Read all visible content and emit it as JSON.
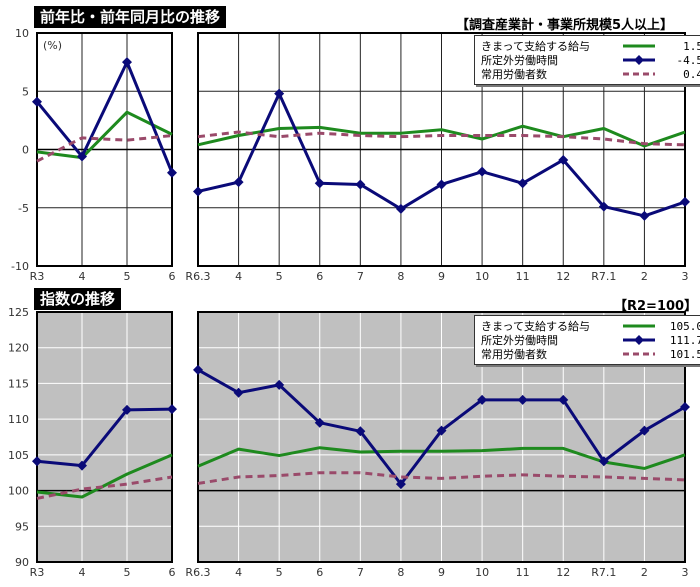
{
  "top": {
    "title": "前年比・前年同月比の推移",
    "note": "【調査産業計・事業所規模5人以上】",
    "unit": "(%)"
  },
  "bottom": {
    "title": "指数の推移",
    "note": "【R2=100】"
  },
  "legend_top": [
    {
      "label": "きまって支給する給与",
      "value": "1.5"
    },
    {
      "label": "所定外労働時間",
      "value": "-4.5"
    },
    {
      "label": "常用労働者数",
      "value": "0.4"
    }
  ],
  "legend_bottom": [
    {
      "label": "きまって支給する給与",
      "value": "105.0"
    },
    {
      "label": "所定外労働時間",
      "value": "111.7"
    },
    {
      "label": "常用労働者数",
      "value": "101.5"
    }
  ],
  "colors": {
    "wage": "#1e8a1e",
    "overtime": "#0a0a78",
    "employees": "#9a4a6a"
  },
  "chart_data": [
    {
      "type": "line",
      "title": "前年比・前年同月比の推移 (年)",
      "ylabel": "(%)",
      "categories": [
        "R3",
        "4",
        "5",
        "6"
      ],
      "ylim": [
        -10,
        10
      ],
      "yticks": [
        -10,
        -5,
        0,
        5,
        10
      ],
      "series": [
        {
          "name": "きまって支給する給与",
          "values": [
            -0.2,
            -0.7,
            3.2,
            1.3
          ]
        },
        {
          "name": "所定外労働時間",
          "values": [
            4.1,
            -0.6,
            7.5,
            -2.0
          ]
        },
        {
          "name": "常用労働者数",
          "values": [
            -1.0,
            1.0,
            0.8,
            1.2
          ]
        }
      ]
    },
    {
      "type": "line",
      "title": "前年比・前年同月比の推移 (月)",
      "categories": [
        "R6.3",
        "4",
        "5",
        "6",
        "7",
        "8",
        "9",
        "10",
        "11",
        "12",
        "R7.1",
        "2",
        "3"
      ],
      "ylim": [
        -10,
        10
      ],
      "series": [
        {
          "name": "きまって支給する給与",
          "values": [
            0.4,
            1.2,
            1.8,
            1.9,
            1.4,
            1.4,
            1.7,
            0.9,
            2.0,
            1.1,
            1.8,
            0.3,
            1.5
          ]
        },
        {
          "name": "所定外労働時間",
          "values": [
            -3.6,
            -2.8,
            4.8,
            -2.9,
            -3.0,
            -5.1,
            -3.0,
            -1.9,
            -2.9,
            -0.9,
            -4.9,
            -5.7,
            -4.5
          ]
        },
        {
          "name": "常用労働者数",
          "values": [
            1.1,
            1.5,
            1.1,
            1.4,
            1.2,
            1.1,
            1.2,
            1.2,
            1.2,
            1.1,
            0.9,
            0.5,
            0.4
          ]
        }
      ]
    },
    {
      "type": "line",
      "title": "指数の推移 (年)",
      "categories": [
        "R3",
        "4",
        "5",
        "6"
      ],
      "ylim": [
        90,
        125
      ],
      "yticks": [
        90,
        95,
        100,
        105,
        110,
        115,
        120,
        125
      ],
      "series": [
        {
          "name": "きまって支給する給与",
          "values": [
            99.8,
            99.1,
            102.3,
            105.0
          ]
        },
        {
          "name": "所定外労働時間",
          "values": [
            104.1,
            103.5,
            111.3,
            111.4
          ]
        },
        {
          "name": "常用労働者数",
          "values": [
            98.9,
            100.2,
            100.9,
            101.9
          ]
        }
      ]
    },
    {
      "type": "line",
      "title": "指数の推移 (月)",
      "categories": [
        "R6.3",
        "4",
        "5",
        "6",
        "7",
        "8",
        "9",
        "10",
        "11",
        "12",
        "R7.1",
        "2",
        "3"
      ],
      "ylim": [
        90,
        125
      ],
      "series": [
        {
          "name": "きまって支給する給与",
          "values": [
            103.4,
            105.8,
            104.9,
            106.0,
            105.4,
            105.5,
            105.5,
            105.6,
            105.9,
            105.9,
            104.0,
            103.1,
            105.0
          ]
        },
        {
          "name": "所定外労働時間",
          "values": [
            116.9,
            113.7,
            114.8,
            109.5,
            108.3,
            100.9,
            108.4,
            112.7,
            112.7,
            112.7,
            104.1,
            108.4,
            111.7
          ]
        },
        {
          "name": "常用労働者数",
          "values": [
            101.0,
            101.9,
            102.1,
            102.5,
            102.5,
            101.9,
            101.7,
            102.0,
            102.2,
            102.0,
            101.9,
            101.7,
            101.5
          ]
        }
      ]
    }
  ]
}
